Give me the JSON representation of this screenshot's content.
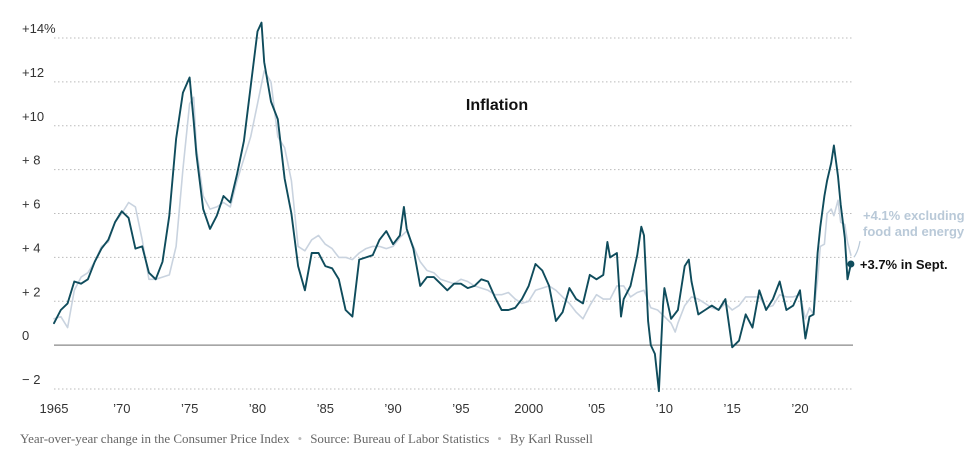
{
  "chart_data": {
    "type": "line",
    "title": "Inflation",
    "xlabel": "",
    "ylabel": "",
    "xlim": [
      1965.0,
      2023.75
    ],
    "ylim": [
      -2.5,
      14.8
    ],
    "y_ticks": [
      {
        "value": 14,
        "label": "+14%"
      },
      {
        "value": 12,
        "label": "+12"
      },
      {
        "value": 10,
        "label": "+10"
      },
      {
        "value": 8,
        "label": "+ 8"
      },
      {
        "value": 6,
        "label": "+ 6"
      },
      {
        "value": 4,
        "label": "+ 4"
      },
      {
        "value": 2,
        "label": "+ 2"
      },
      {
        "value": 0,
        "label": "0"
      },
      {
        "value": -2,
        "label": "− 2"
      }
    ],
    "x_ticks": [
      {
        "value": 1965,
        "label": "1965"
      },
      {
        "value": 1970,
        "label": "’70"
      },
      {
        "value": 1975,
        "label": "’75"
      },
      {
        "value": 1980,
        "label": "’80"
      },
      {
        "value": 1985,
        "label": "’85"
      },
      {
        "value": 1990,
        "label": "’90"
      },
      {
        "value": 1995,
        "label": "’95"
      },
      {
        "value": 2000,
        "label": "2000"
      },
      {
        "value": 2005,
        "label": "’05"
      },
      {
        "value": 2010,
        "label": "’10"
      },
      {
        "value": 2015,
        "label": "’15"
      },
      {
        "value": 2020,
        "label": "’20"
      }
    ],
    "grid": true,
    "series": [
      {
        "name": "",
        "role": "headline",
        "color": "#0f4c5c",
        "points": [
          [
            1965,
            1.0
          ],
          [
            1965.5,
            1.6
          ],
          [
            1966,
            1.9
          ],
          [
            1966.5,
            2.9
          ],
          [
            1967,
            2.8
          ],
          [
            1967.5,
            3.0
          ],
          [
            1968,
            3.8
          ],
          [
            1968.5,
            4.4
          ],
          [
            1969,
            4.8
          ],
          [
            1969.5,
            5.6
          ],
          [
            1970,
            6.1
          ],
          [
            1970.5,
            5.8
          ],
          [
            1971,
            4.4
          ],
          [
            1971.5,
            4.5
          ],
          [
            1972,
            3.3
          ],
          [
            1972.5,
            3.0
          ],
          [
            1973,
            3.8
          ],
          [
            1973.5,
            5.9
          ],
          [
            1974,
            9.4
          ],
          [
            1974.5,
            11.5
          ],
          [
            1975,
            12.2
          ],
          [
            1975.3,
            10.2
          ],
          [
            1975.5,
            8.7
          ],
          [
            1976,
            6.2
          ],
          [
            1976.5,
            5.3
          ],
          [
            1977,
            5.9
          ],
          [
            1977.5,
            6.8
          ],
          [
            1978,
            6.5
          ],
          [
            1978.5,
            7.8
          ],
          [
            1979,
            9.3
          ],
          [
            1979.5,
            11.8
          ],
          [
            1980,
            14.3
          ],
          [
            1980.3,
            14.7
          ],
          [
            1980.5,
            12.9
          ],
          [
            1981,
            11.1
          ],
          [
            1981.5,
            10.3
          ],
          [
            1982,
            7.6
          ],
          [
            1982.5,
            6.0
          ],
          [
            1983,
            3.6
          ],
          [
            1983.5,
            2.5
          ],
          [
            1984,
            4.2
          ],
          [
            1984.5,
            4.2
          ],
          [
            1985,
            3.6
          ],
          [
            1985.5,
            3.5
          ],
          [
            1986,
            3.0
          ],
          [
            1986.5,
            1.6
          ],
          [
            1987,
            1.3
          ],
          [
            1987.5,
            3.9
          ],
          [
            1988,
            4.0
          ],
          [
            1988.5,
            4.1
          ],
          [
            1989,
            4.8
          ],
          [
            1989.5,
            5.2
          ],
          [
            1990,
            4.6
          ],
          [
            1990.5,
            5.0
          ],
          [
            1990.8,
            6.3
          ],
          [
            1991,
            5.3
          ],
          [
            1991.5,
            4.4
          ],
          [
            1992,
            2.7
          ],
          [
            1992.5,
            3.1
          ],
          [
            1993,
            3.1
          ],
          [
            1993.5,
            2.8
          ],
          [
            1994,
            2.5
          ],
          [
            1994.5,
            2.8
          ],
          [
            1995,
            2.8
          ],
          [
            1995.5,
            2.6
          ],
          [
            1996,
            2.7
          ],
          [
            1996.5,
            3.0
          ],
          [
            1997,
            2.9
          ],
          [
            1997.5,
            2.2
          ],
          [
            1998,
            1.6
          ],
          [
            1998.5,
            1.6
          ],
          [
            1999,
            1.7
          ],
          [
            1999.5,
            2.1
          ],
          [
            2000,
            2.7
          ],
          [
            2000.5,
            3.7
          ],
          [
            2001,
            3.4
          ],
          [
            2001.5,
            2.7
          ],
          [
            2002,
            1.1
          ],
          [
            2002.5,
            1.5
          ],
          [
            2003,
            2.6
          ],
          [
            2003.5,
            2.1
          ],
          [
            2004,
            1.9
          ],
          [
            2004.5,
            3.2
          ],
          [
            2005,
            3.0
          ],
          [
            2005.5,
            3.2
          ],
          [
            2005.8,
            4.7
          ],
          [
            2006,
            4.0
          ],
          [
            2006.5,
            4.2
          ],
          [
            2006.8,
            1.3
          ],
          [
            2007,
            2.1
          ],
          [
            2007.5,
            2.7
          ],
          [
            2008,
            4.1
          ],
          [
            2008.3,
            5.4
          ],
          [
            2008.5,
            5.0
          ],
          [
            2008.8,
            1.1
          ],
          [
            2009,
            0.0
          ],
          [
            2009.3,
            -0.4
          ],
          [
            2009.6,
            -2.1
          ],
          [
            2009.9,
            1.8
          ],
          [
            2010,
            2.6
          ],
          [
            2010.5,
            1.2
          ],
          [
            2011,
            1.6
          ],
          [
            2011.5,
            3.6
          ],
          [
            2011.8,
            3.9
          ],
          [
            2012,
            2.9
          ],
          [
            2012.5,
            1.4
          ],
          [
            2013,
            1.6
          ],
          [
            2013.5,
            1.8
          ],
          [
            2014,
            1.6
          ],
          [
            2014.5,
            2.1
          ],
          [
            2015,
            -0.1
          ],
          [
            2015.5,
            0.2
          ],
          [
            2016,
            1.4
          ],
          [
            2016.5,
            0.8
          ],
          [
            2017,
            2.5
          ],
          [
            2017.5,
            1.6
          ],
          [
            2018,
            2.1
          ],
          [
            2018.5,
            2.9
          ],
          [
            2019,
            1.6
          ],
          [
            2019.5,
            1.8
          ],
          [
            2020,
            2.5
          ],
          [
            2020.4,
            0.3
          ],
          [
            2020.7,
            1.3
          ],
          [
            2021,
            1.4
          ],
          [
            2021.3,
            4.2
          ],
          [
            2021.5,
            5.4
          ],
          [
            2021.8,
            6.8
          ],
          [
            2022,
            7.5
          ],
          [
            2022.3,
            8.3
          ],
          [
            2022.5,
            9.1
          ],
          [
            2022.8,
            7.7
          ],
          [
            2023,
            6.4
          ],
          [
            2023.3,
            4.9
          ],
          [
            2023.5,
            3.0
          ],
          [
            2023.75,
            3.7
          ]
        ]
      },
      {
        "name": "",
        "role": "core",
        "color": "#c9d3df",
        "points": [
          [
            1965,
            1.2
          ],
          [
            1965.5,
            1.3
          ],
          [
            1966,
            0.8
          ],
          [
            1966.5,
            2.5
          ],
          [
            1967,
            3.1
          ],
          [
            1967.5,
            3.3
          ],
          [
            1968,
            3.8
          ],
          [
            1968.5,
            4.5
          ],
          [
            1969,
            4.7
          ],
          [
            1969.5,
            5.6
          ],
          [
            1970,
            6.0
          ],
          [
            1970.5,
            6.5
          ],
          [
            1971,
            6.3
          ],
          [
            1971.5,
            4.8
          ],
          [
            1972,
            3.0
          ],
          [
            1972.5,
            3.0
          ],
          [
            1973,
            3.1
          ],
          [
            1973.5,
            3.2
          ],
          [
            1974,
            4.5
          ],
          [
            1974.5,
            8.0
          ],
          [
            1975,
            11.0
          ],
          [
            1975.3,
            11.3
          ],
          [
            1975.5,
            9.0
          ],
          [
            1976,
            6.8
          ],
          [
            1976.5,
            6.2
          ],
          [
            1977,
            6.3
          ],
          [
            1977.5,
            6.5
          ],
          [
            1978,
            6.3
          ],
          [
            1978.5,
            7.5
          ],
          [
            1979,
            8.5
          ],
          [
            1979.5,
            9.5
          ],
          [
            1980,
            11.0
          ],
          [
            1980.5,
            12.5
          ],
          [
            1981,
            12.0
          ],
          [
            1981.5,
            9.5
          ],
          [
            1982,
            9.0
          ],
          [
            1982.5,
            7.5
          ],
          [
            1983,
            4.5
          ],
          [
            1983.5,
            4.3
          ],
          [
            1984,
            4.8
          ],
          [
            1984.5,
            5.0
          ],
          [
            1985,
            4.6
          ],
          [
            1985.5,
            4.4
          ],
          [
            1986,
            4.0
          ],
          [
            1986.5,
            4.0
          ],
          [
            1987,
            3.9
          ],
          [
            1987.5,
            4.2
          ],
          [
            1988,
            4.4
          ],
          [
            1988.5,
            4.5
          ],
          [
            1989,
            4.5
          ],
          [
            1989.5,
            4.4
          ],
          [
            1990,
            4.5
          ],
          [
            1990.5,
            4.9
          ],
          [
            1991,
            5.2
          ],
          [
            1991.5,
            4.5
          ],
          [
            1992,
            3.8
          ],
          [
            1992.5,
            3.4
          ],
          [
            1993,
            3.3
          ],
          [
            1993.5,
            3.0
          ],
          [
            1994,
            2.9
          ],
          [
            1994.5,
            2.8
          ],
          [
            1995,
            3.0
          ],
          [
            1995.5,
            2.9
          ],
          [
            1996,
            2.7
          ],
          [
            1996.5,
            2.6
          ],
          [
            1997,
            2.5
          ],
          [
            1997.5,
            2.3
          ],
          [
            1998,
            2.3
          ],
          [
            1998.5,
            2.4
          ],
          [
            1999,
            2.1
          ],
          [
            1999.5,
            1.9
          ],
          [
            2000,
            2.0
          ],
          [
            2000.5,
            2.5
          ],
          [
            2001,
            2.6
          ],
          [
            2001.5,
            2.7
          ],
          [
            2002,
            2.5
          ],
          [
            2002.5,
            2.2
          ],
          [
            2003,
            1.9
          ],
          [
            2003.5,
            1.5
          ],
          [
            2004,
            1.2
          ],
          [
            2004.5,
            1.8
          ],
          [
            2005,
            2.3
          ],
          [
            2005.5,
            2.1
          ],
          [
            2006,
            2.1
          ],
          [
            2006.5,
            2.7
          ],
          [
            2007,
            2.7
          ],
          [
            2007.5,
            2.2
          ],
          [
            2008,
            2.4
          ],
          [
            2008.5,
            2.5
          ],
          [
            2009,
            1.7
          ],
          [
            2009.5,
            1.6
          ],
          [
            2010,
            1.3
          ],
          [
            2010.5,
            1.0
          ],
          [
            2010.8,
            0.6
          ],
          [
            2011,
            1.0
          ],
          [
            2011.5,
            1.8
          ],
          [
            2012,
            2.2
          ],
          [
            2012.5,
            2.1
          ],
          [
            2013,
            1.9
          ],
          [
            2013.5,
            1.7
          ],
          [
            2014,
            1.6
          ],
          [
            2014.5,
            1.9
          ],
          [
            2015,
            1.6
          ],
          [
            2015.5,
            1.8
          ],
          [
            2016,
            2.2
          ],
          [
            2016.5,
            2.2
          ],
          [
            2017,
            2.2
          ],
          [
            2017.5,
            1.7
          ],
          [
            2018,
            1.8
          ],
          [
            2018.5,
            2.3
          ],
          [
            2019,
            2.2
          ],
          [
            2019.5,
            2.2
          ],
          [
            2020,
            2.3
          ],
          [
            2020.4,
            1.2
          ],
          [
            2020.7,
            1.7
          ],
          [
            2021,
            1.4
          ],
          [
            2021.3,
            3.0
          ],
          [
            2021.5,
            4.5
          ],
          [
            2021.8,
            4.6
          ],
          [
            2022,
            6.0
          ],
          [
            2022.3,
            6.2
          ],
          [
            2022.5,
            5.9
          ],
          [
            2022.8,
            6.6
          ],
          [
            2023,
            5.6
          ],
          [
            2023.3,
            5.5
          ],
          [
            2023.5,
            4.7
          ],
          [
            2023.75,
            4.1
          ]
        ]
      }
    ],
    "annotations": {
      "core_label_line1": "+4.1% excluding",
      "core_label_line2": "food and energy",
      "core_value": 4.1,
      "headline_label": "+3.7% in Sept.",
      "headline_value": 3.7
    }
  },
  "footer": {
    "description": "Year-over-year change in the Consumer Price Index",
    "source": "Source: Bureau of Labor Statistics",
    "byline": "By Karl Russell",
    "separator": "•"
  }
}
